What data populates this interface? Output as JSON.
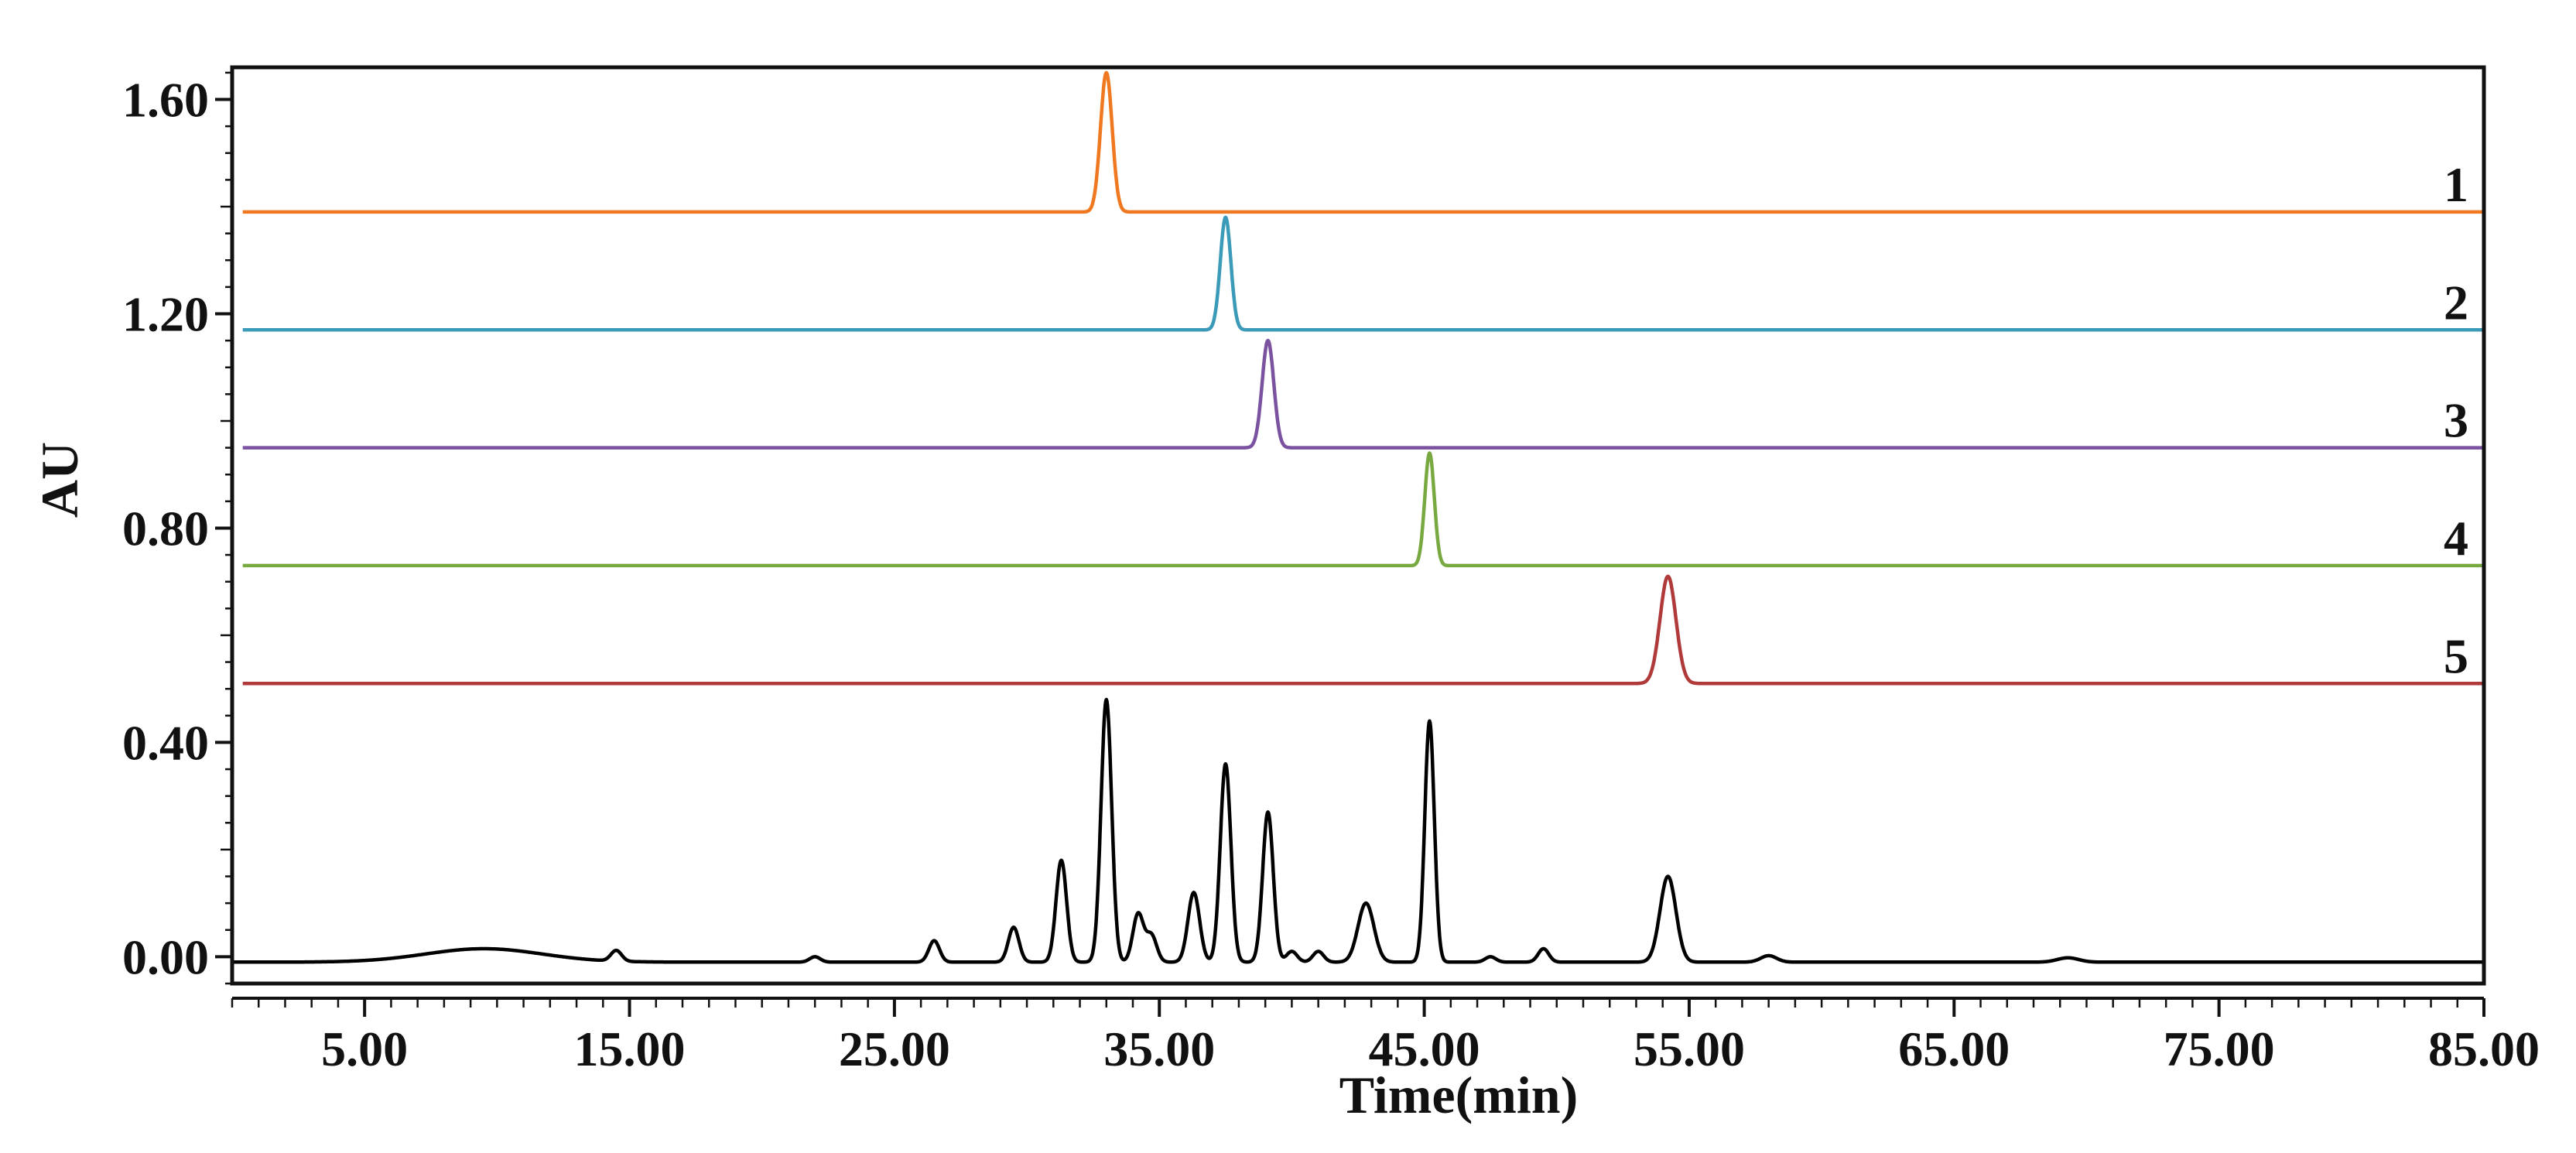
{
  "chart_data": {
    "type": "line",
    "title": "",
    "xlabel": "Time(min)",
    "ylabel": "AU",
    "xlim": [
      0.0,
      85.0
    ],
    "ylim": [
      -0.05,
      1.66
    ],
    "grid": false,
    "legend": "none",
    "x_ticks": [
      {
        "value": 5,
        "label": "5.00"
      },
      {
        "value": 15,
        "label": "15.00"
      },
      {
        "value": 25,
        "label": "25.00"
      },
      {
        "value": 35,
        "label": "35.00"
      },
      {
        "value": 45,
        "label": "45.00"
      },
      {
        "value": 55,
        "label": "55.00"
      },
      {
        "value": 65,
        "label": "65.00"
      },
      {
        "value": 75,
        "label": "75.00"
      },
      {
        "value": 85,
        "label": "85.00"
      }
    ],
    "y_ticks": [
      {
        "value": 0.0,
        "label": "0.00"
      },
      {
        "value": 0.4,
        "label": "0.40"
      },
      {
        "value": 0.8,
        "label": "0.80"
      },
      {
        "value": 1.2,
        "label": "1.20"
      },
      {
        "value": 1.6,
        "label": "1.60"
      }
    ],
    "series": [
      {
        "label": "1",
        "color": "#f07820",
        "baseline": 1.39,
        "peaks": [
          {
            "rt": 33.0,
            "height": 0.26,
            "width": 0.22
          }
        ]
      },
      {
        "label": "2",
        "color": "#3a9ab8",
        "baseline": 1.17,
        "peaks": [
          {
            "rt": 37.5,
            "height": 0.21,
            "width": 0.2
          }
        ]
      },
      {
        "label": "3",
        "color": "#7a52a0",
        "baseline": 0.95,
        "peaks": [
          {
            "rt": 39.1,
            "height": 0.2,
            "width": 0.22
          }
        ]
      },
      {
        "label": "4",
        "color": "#78a840",
        "baseline": 0.73,
        "peaks": [
          {
            "rt": 45.2,
            "height": 0.21,
            "width": 0.18
          }
        ]
      },
      {
        "label": "5",
        "color": "#b03a3a",
        "baseline": 0.51,
        "peaks": [
          {
            "rt": 54.2,
            "height": 0.2,
            "width": 0.3
          }
        ]
      },
      {
        "color": "#000000",
        "baseline": -0.01,
        "peaks": [
          {
            "rt": 9.5,
            "height": 0.025,
            "width": 2.2
          },
          {
            "rt": 14.5,
            "height": 0.02,
            "width": 0.2
          },
          {
            "rt": 22.0,
            "height": 0.01,
            "width": 0.2
          },
          {
            "rt": 26.5,
            "height": 0.04,
            "width": 0.2
          },
          {
            "rt": 29.5,
            "height": 0.065,
            "width": 0.2
          },
          {
            "rt": 31.3,
            "height": 0.19,
            "width": 0.2
          },
          {
            "rt": 33.0,
            "height": 0.49,
            "width": 0.2
          },
          {
            "rt": 34.2,
            "height": 0.09,
            "width": 0.2
          },
          {
            "rt": 34.7,
            "height": 0.05,
            "width": 0.2
          },
          {
            "rt": 36.3,
            "height": 0.13,
            "width": 0.22
          },
          {
            "rt": 37.5,
            "height": 0.37,
            "width": 0.2
          },
          {
            "rt": 39.1,
            "height": 0.28,
            "width": 0.2
          },
          {
            "rt": 40.0,
            "height": 0.02,
            "width": 0.2
          },
          {
            "rt": 41.0,
            "height": 0.02,
            "width": 0.2
          },
          {
            "rt": 42.8,
            "height": 0.11,
            "width": 0.3
          },
          {
            "rt": 45.2,
            "height": 0.45,
            "width": 0.18
          },
          {
            "rt": 47.5,
            "height": 0.01,
            "width": 0.2
          },
          {
            "rt": 49.5,
            "height": 0.025,
            "width": 0.2
          },
          {
            "rt": 54.2,
            "height": 0.16,
            "width": 0.3
          },
          {
            "rt": 58.0,
            "height": 0.012,
            "width": 0.3
          },
          {
            "rt": 69.3,
            "height": 0.008,
            "width": 0.4
          }
        ]
      }
    ]
  }
}
